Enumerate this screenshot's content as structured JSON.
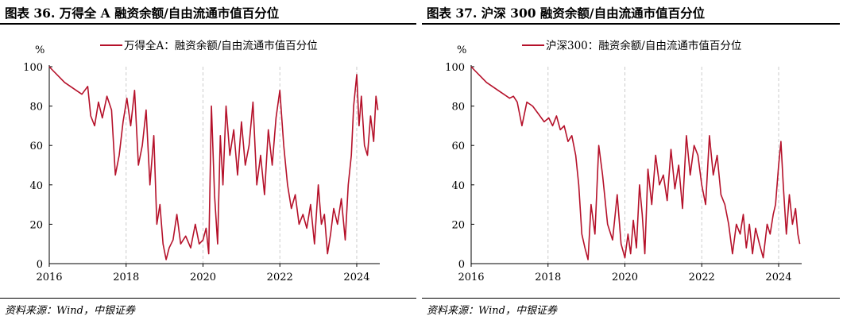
{
  "charts": [
    {
      "title": "图表 36. 万得全 A 融资余额/自由流通市值百分位",
      "source": "资料来源：Wind，中银证券",
      "unit_label": "%",
      "legend_label": "万得全A：融资余额/自由流通市值百分位",
      "line_color": "#B5112A"
    },
    {
      "title": "图表 37. 沪深 300 融资余额/自由流通市值百分位",
      "source": "资料来源：Wind，中银证券",
      "unit_label": "%",
      "legend_label": "沪深300：融资余额/自由流通市值百分位",
      "line_color": "#B5112A"
    }
  ],
  "chart_data": [
    {
      "type": "line",
      "title": "图表 36. 万得全 A 融资余额/自由流通市值百分位",
      "ylabel": "%",
      "xlabel": "",
      "ylim": [
        0,
        100
      ],
      "xlim": [
        2016.0,
        2024.6
      ],
      "yticks": [
        "0",
        "20",
        "40",
        "60",
        "80",
        "100"
      ],
      "xticks": [
        "2016",
        "2018",
        "2020",
        "2022",
        "2024"
      ],
      "grid": "dashed vertical gridlines at x ticks",
      "legend": "top-center",
      "series": [
        {
          "name": "万得全A：融资余额/自由流通市值百分位",
          "x": [
            2016.0,
            2016.1,
            2016.25,
            2016.4,
            2016.55,
            2016.7,
            2016.85,
            2017.0,
            2017.08,
            2017.18,
            2017.28,
            2017.38,
            2017.5,
            2017.62,
            2017.72,
            2017.82,
            2017.92,
            2018.02,
            2018.12,
            2018.22,
            2018.32,
            2018.42,
            2018.52,
            2018.62,
            2018.72,
            2018.8,
            2018.88,
            2018.96,
            2019.04,
            2019.12,
            2019.22,
            2019.32,
            2019.42,
            2019.55,
            2019.68,
            2019.8,
            2019.9,
            2020.0,
            2020.08,
            2020.15,
            2020.22,
            2020.3,
            2020.38,
            2020.45,
            2020.52,
            2020.6,
            2020.7,
            2020.8,
            2020.9,
            2021.0,
            2021.1,
            2021.2,
            2021.3,
            2021.4,
            2021.5,
            2021.6,
            2021.7,
            2021.8,
            2021.9,
            2022.0,
            2022.1,
            2022.2,
            2022.3,
            2022.4,
            2022.5,
            2022.6,
            2022.7,
            2022.8,
            2022.9,
            2023.0,
            2023.08,
            2023.16,
            2023.24,
            2023.32,
            2023.4,
            2023.5,
            2023.6,
            2023.7,
            2023.78,
            2023.86,
            2023.92,
            2024.0,
            2024.06,
            2024.12,
            2024.2,
            2024.28,
            2024.36,
            2024.44,
            2024.5,
            2024.55
          ],
          "values": [
            100,
            98,
            95,
            92,
            90,
            88,
            86,
            90,
            75,
            70,
            82,
            74,
            85,
            78,
            45,
            55,
            72,
            84,
            70,
            88,
            50,
            60,
            78,
            40,
            65,
            20,
            30,
            10,
            2,
            8,
            12,
            25,
            10,
            14,
            8,
            20,
            10,
            12,
            18,
            5,
            80,
            35,
            10,
            65,
            40,
            80,
            55,
            68,
            45,
            72,
            50,
            60,
            82,
            40,
            55,
            35,
            68,
            50,
            74,
            88,
            60,
            40,
            28,
            35,
            20,
            25,
            18,
            30,
            10,
            40,
            20,
            25,
            5,
            15,
            28,
            20,
            33,
            12,
            40,
            55,
            80,
            96,
            70,
            85,
            60,
            55,
            75,
            62,
            85,
            78
          ]
        }
      ]
    },
    {
      "type": "line",
      "title": "图表 37. 沪深 300 融资余额/自由流通市值百分位",
      "ylabel": "%",
      "xlabel": "",
      "ylim": [
        0,
        100
      ],
      "xlim": [
        2016.0,
        2024.6
      ],
      "yticks": [
        "0",
        "20",
        "40",
        "60",
        "80",
        "100"
      ],
      "xticks": [
        "2016",
        "2018",
        "2020",
        "2022",
        "2024"
      ],
      "grid": "dashed vertical gridlines at x ticks",
      "legend": "top-center",
      "series": [
        {
          "name": "沪深300：融资余额/自由流通市值百分位",
          "x": [
            2016.0,
            2016.1,
            2016.25,
            2016.4,
            2016.55,
            2016.7,
            2016.85,
            2017.0,
            2017.1,
            2017.2,
            2017.32,
            2017.45,
            2017.6,
            2017.75,
            2017.9,
            2018.02,
            2018.12,
            2018.22,
            2018.32,
            2018.42,
            2018.52,
            2018.62,
            2018.72,
            2018.8,
            2018.88,
            2018.96,
            2019.04,
            2019.12,
            2019.22,
            2019.32,
            2019.42,
            2019.55,
            2019.68,
            2019.8,
            2019.9,
            2020.0,
            2020.08,
            2020.15,
            2020.22,
            2020.3,
            2020.38,
            2020.45,
            2020.52,
            2020.6,
            2020.7,
            2020.8,
            2020.9,
            2021.0,
            2021.1,
            2021.2,
            2021.3,
            2021.4,
            2021.5,
            2021.6,
            2021.7,
            2021.8,
            2021.9,
            2022.0,
            2022.1,
            2022.2,
            2022.3,
            2022.4,
            2022.5,
            2022.6,
            2022.7,
            2022.8,
            2022.9,
            2023.0,
            2023.08,
            2023.16,
            2023.24,
            2023.32,
            2023.4,
            2023.5,
            2023.6,
            2023.7,
            2023.78,
            2023.86,
            2023.92,
            2024.0,
            2024.06,
            2024.12,
            2024.2,
            2024.28,
            2024.36,
            2024.44,
            2024.5,
            2024.55
          ],
          "values": [
            100,
            98,
            95,
            92,
            90,
            88,
            86,
            84,
            85,
            82,
            70,
            82,
            80,
            76,
            72,
            74,
            70,
            75,
            68,
            70,
            62,
            65,
            55,
            40,
            15,
            8,
            2,
            30,
            15,
            60,
            45,
            20,
            12,
            35,
            10,
            3,
            15,
            5,
            22,
            8,
            40,
            25,
            5,
            48,
            30,
            55,
            40,
            45,
            32,
            58,
            38,
            50,
            28,
            65,
            45,
            60,
            55,
            40,
            30,
            65,
            45,
            55,
            35,
            30,
            20,
            5,
            20,
            15,
            25,
            8,
            20,
            5,
            18,
            10,
            3,
            20,
            15,
            25,
            30,
            50,
            62,
            40,
            15,
            35,
            20,
            28,
            15,
            10
          ]
        }
      ]
    }
  ]
}
